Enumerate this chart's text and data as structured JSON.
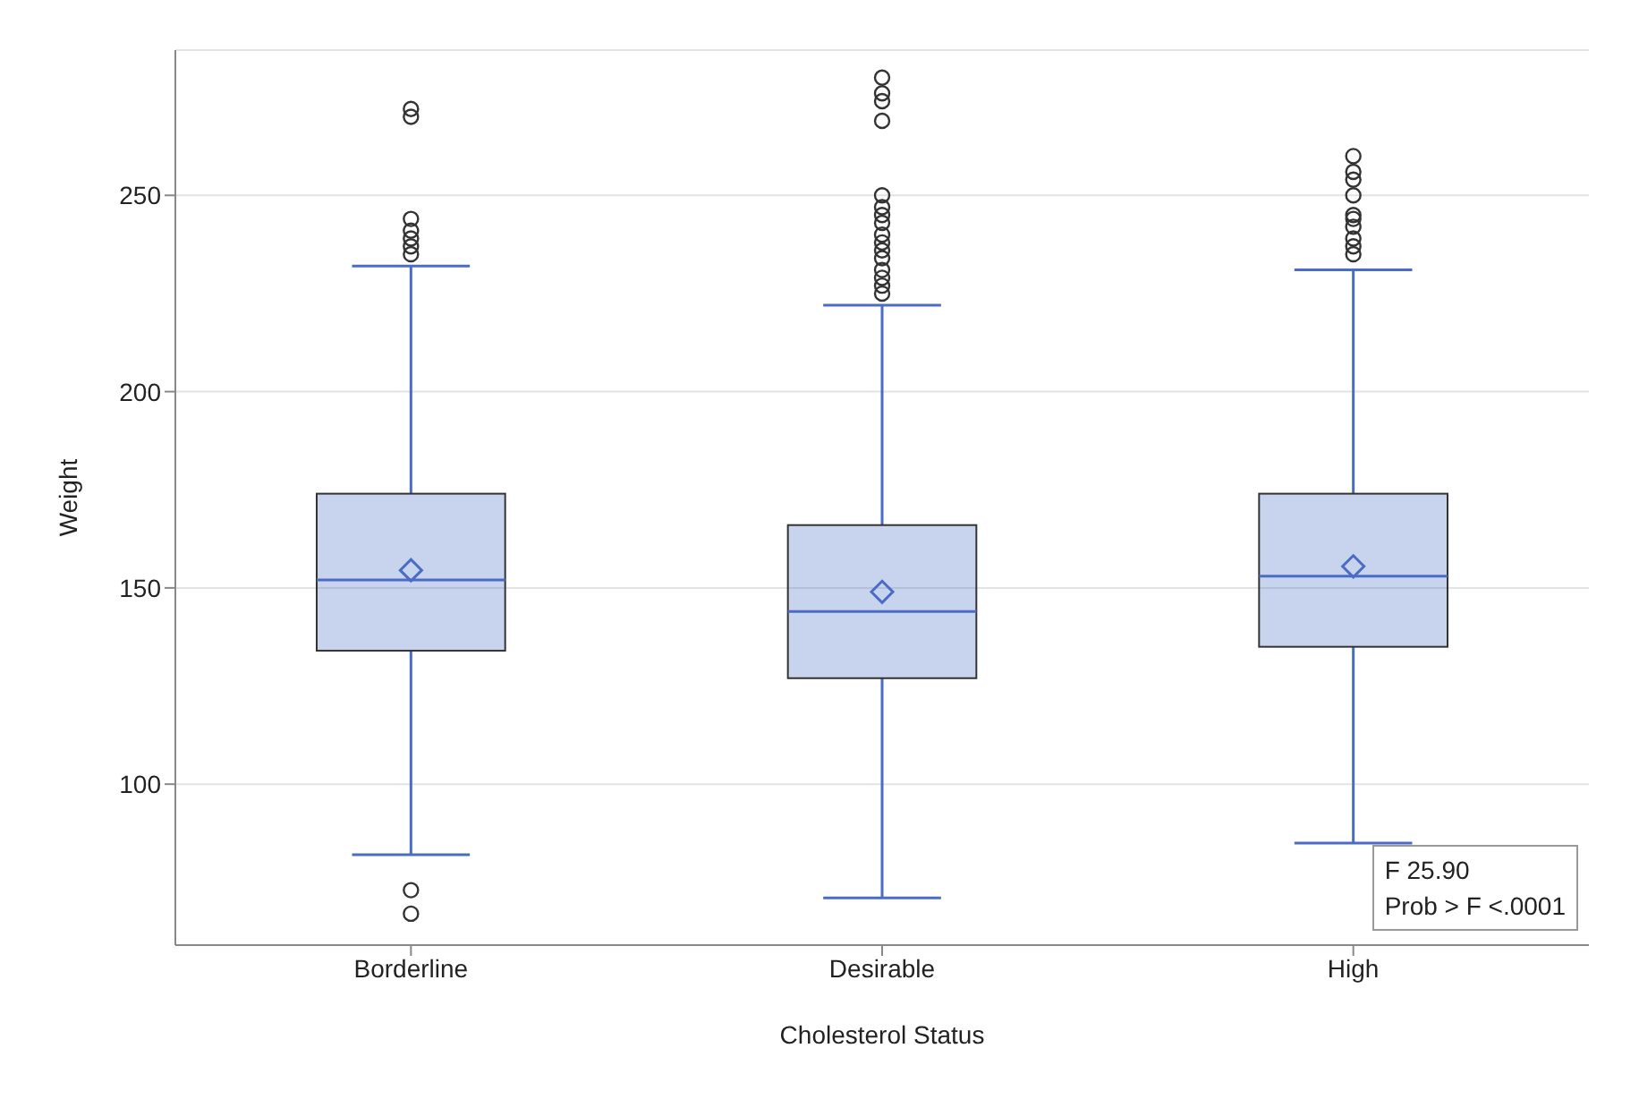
{
  "chart_data": {
    "type": "box",
    "xlabel": "Cholesterol Status",
    "ylabel": "Weight",
    "categories": [
      "Borderline",
      "Desirable",
      "High"
    ],
    "series": [
      {
        "color": "#4a6cc5",
        "boxes": [
          {
            "low": 82,
            "q1": 134,
            "median": 152,
            "q3": 174,
            "high": 232,
            "mean": 154.5,
            "outliers": [
              272,
              270,
              244,
              241,
              239,
              237,
              235,
              73,
              67
            ]
          },
          {
            "low": 71,
            "q1": 127,
            "median": 144,
            "q3": 166,
            "high": 222,
            "mean": 149,
            "outliers": [
              280,
              276,
              274,
              269,
              250,
              247,
              245,
              243,
              240,
              238,
              236,
              234,
              231,
              229,
              227,
              225
            ]
          },
          {
            "low": 85,
            "q1": 135,
            "median": 153,
            "q3": 174,
            "high": 231,
            "mean": 155.5,
            "outliers": [
              260,
              256,
              254,
              250,
              245,
              244,
              242,
              239,
              237,
              235
            ]
          }
        ]
      }
    ],
    "ylim": [
      59,
      287
    ],
    "yticks": [
      100,
      150,
      200,
      250
    ],
    "grid": "y",
    "annotations": [
      "F 25.90",
      "Prob > F <.0001"
    ]
  }
}
